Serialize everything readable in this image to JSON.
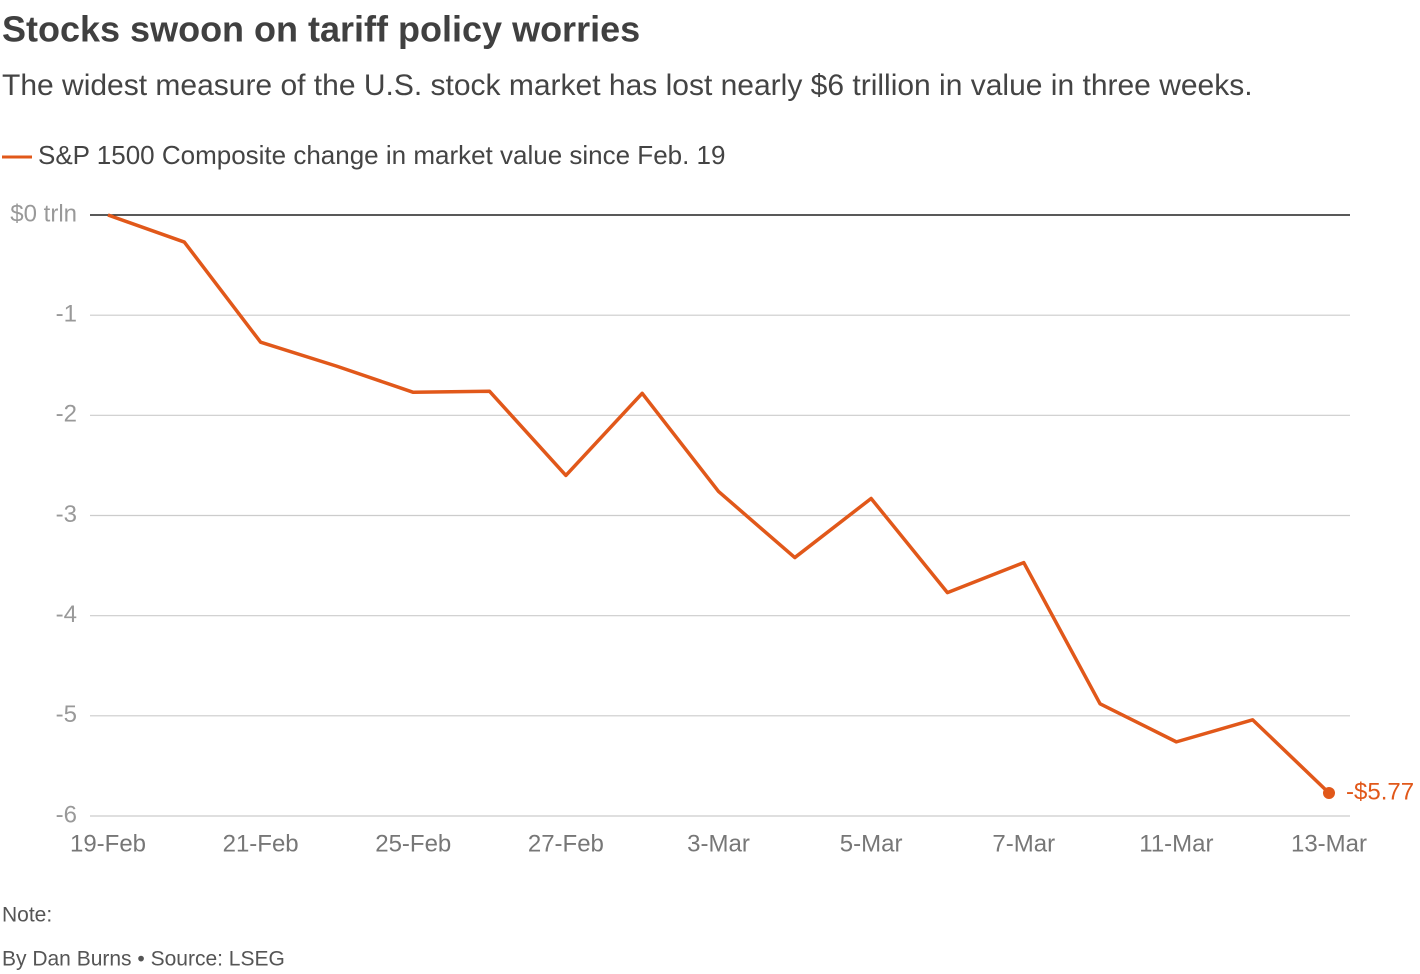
{
  "chart_data": {
    "type": "line",
    "title": "Stocks swoon on tariff policy worries",
    "subtitle": "The widest measure of the U.S. stock market has lost nearly $6 trillion in value in three weeks.",
    "categories": [
      "19-Feb",
      null,
      "21-Feb",
      null,
      "25-Feb",
      null,
      "27-Feb",
      null,
      "3-Mar",
      null,
      "5-Mar",
      null,
      "7-Mar",
      null,
      "11-Mar",
      null,
      "13-Mar"
    ],
    "series": [
      {
        "name": "S&P 1500 Composite change in market value since Feb. 19",
        "color": "#e1581a",
        "values": [
          0,
          -0.27,
          -1.27,
          -1.51,
          -1.77,
          -1.76,
          -2.6,
          -1.78,
          -2.76,
          -3.42,
          -2.83,
          -3.77,
          -3.47,
          -4.88,
          -5.26,
          -5.04,
          -5.77
        ],
        "value_labels": [
          null,
          null,
          null,
          null,
          null,
          null,
          null,
          null,
          null,
          null,
          null,
          null,
          null,
          null,
          null,
          null,
          "-$5.77"
        ]
      }
    ],
    "ylim": [
      -6,
      0
    ],
    "yticks": [
      {
        "value": 0,
        "label": "$0 trln"
      },
      -1,
      -2,
      -3,
      -4,
      -5,
      -6
    ],
    "grid": true,
    "note": "Note:",
    "source": "By Dan Burns • Source: LSEG"
  }
}
